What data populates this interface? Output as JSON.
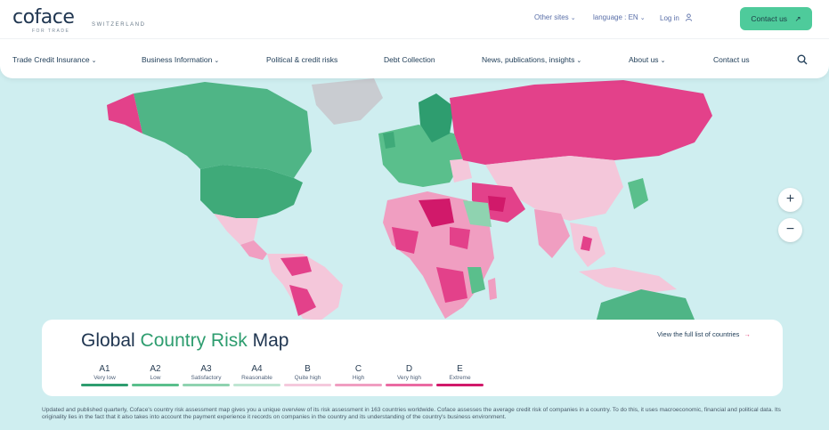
{
  "brand": {
    "logo": "coface",
    "tagline": "FOR TRADE",
    "country": "SWITZERLAND"
  },
  "topbar": {
    "other_sites": "Other sites",
    "language": "language : EN",
    "login": "Log in",
    "contact": "Contact us"
  },
  "nav": {
    "items": [
      "Trade Credit Insurance",
      "Business Information",
      "Political & credit risks",
      "Debt Collection",
      "News, publications, insights",
      "About us",
      "Contact us"
    ]
  },
  "map": {
    "zoom_in": "+",
    "zoom_out": "−",
    "ocean_color": "#cfeef0"
  },
  "panel": {
    "title_a": "Global ",
    "title_b": "Country Risk",
    "title_c": " Map",
    "full_list": "View the full list of countries",
    "legend": [
      {
        "code": "A1",
        "label": "Very low",
        "color": "#2e9d6f"
      },
      {
        "code": "A2",
        "label": "Low",
        "color": "#5abf8c"
      },
      {
        "code": "A3",
        "label": "Satisfactory",
        "color": "#8fd3b0"
      },
      {
        "code": "A4",
        "label": "Reasonable",
        "color": "#bfe6d2"
      },
      {
        "code": "B",
        "label": "Quite high",
        "color": "#f5c9dc"
      },
      {
        "code": "C",
        "label": "High",
        "color": "#f09ec1"
      },
      {
        "code": "D",
        "label": "Very high",
        "color": "#ea6aa2"
      },
      {
        "code": "E",
        "label": "Extreme",
        "color": "#d1196a"
      }
    ]
  },
  "footnote": "Updated and published quarterly, Coface's country risk assessment map gives you a unique overview of its risk assessment in 163 countries worldwide. Coface assesses the average credit risk of companies in a country. To do this, it uses macroeconomic, financial and political data. Its originality lies in the fact that it also takes into account the payment experience it records on companies in the country and its understanding of the country's business environment."
}
